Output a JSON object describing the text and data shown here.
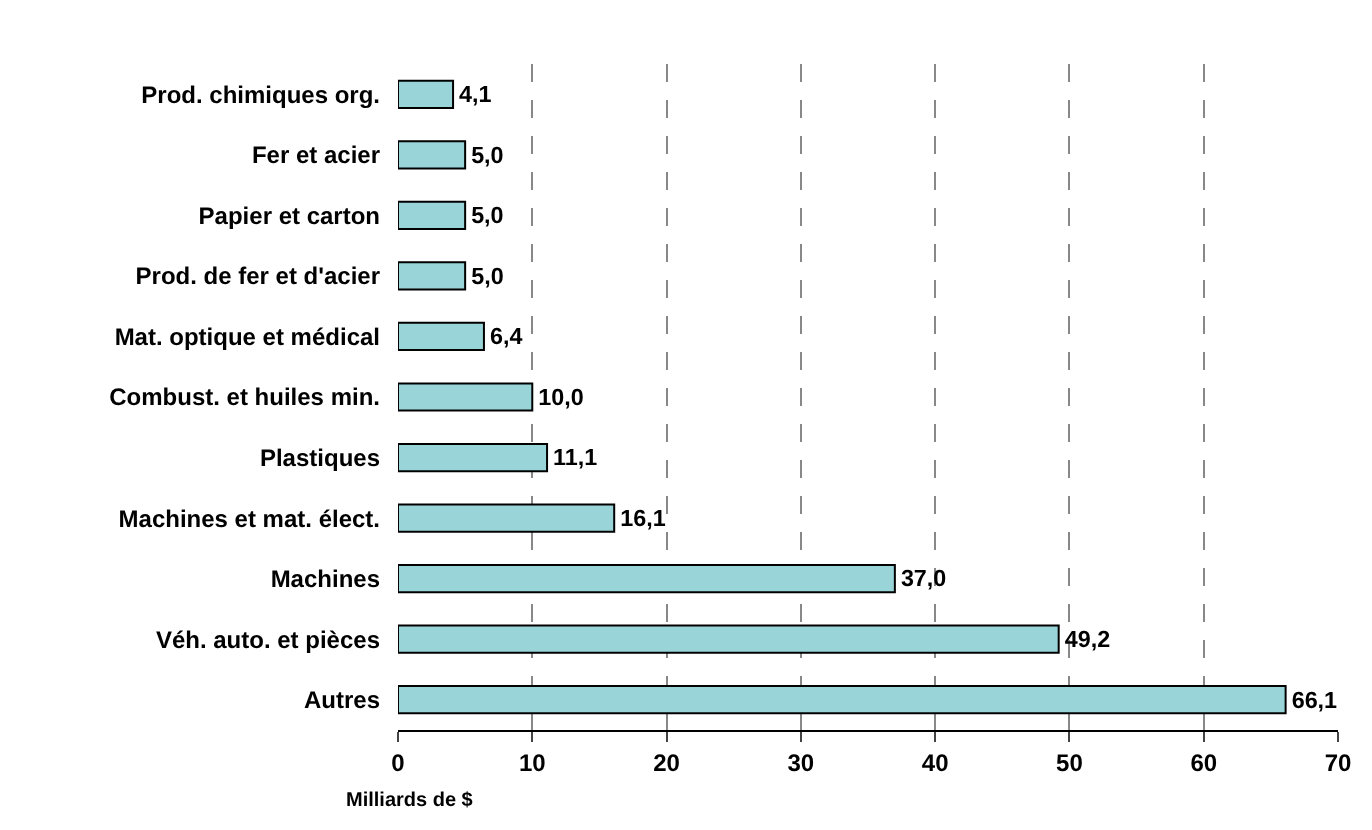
{
  "chart_data": {
    "type": "bar",
    "orientation": "horizontal",
    "xlabel": "Milliards de $",
    "categories": [
      "Prod. chimiques org.",
      "Fer et acier",
      "Papier et carton",
      "Prod. de fer et d'acier",
      "Mat. optique et médical",
      "Combust. et huiles min.",
      "Plastiques",
      "Machines et mat. élect.",
      "Machines",
      "Véh. auto. et pièces",
      "Autres"
    ],
    "values": [
      4.1,
      5.0,
      5.0,
      5.0,
      6.4,
      10.0,
      11.1,
      16.1,
      37.0,
      49.2,
      66.1
    ],
    "value_labels": [
      "4,1",
      "5,0",
      "5,0",
      "5,0",
      "6,4",
      "10,0",
      "11,1",
      "16,1",
      "37,0",
      "49,2",
      "66,1"
    ],
    "color": "#99d5d8",
    "xlim": [
      0,
      70
    ],
    "xticks": [
      0,
      10,
      20,
      30,
      40,
      50,
      60,
      70
    ],
    "grid": "x"
  }
}
